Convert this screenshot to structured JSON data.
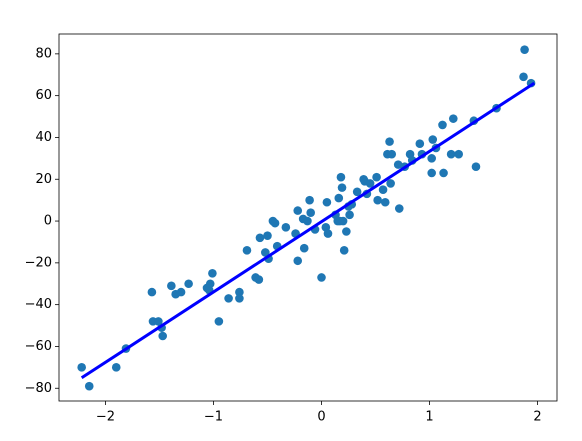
{
  "chart_data": {
    "type": "scatter",
    "xlim": [
      -2.43,
      2.18
    ],
    "ylim": [
      -86.1,
      89.5
    ],
    "xticks": [
      {
        "value": -2,
        "label": "−2"
      },
      {
        "value": -1,
        "label": "−1"
      },
      0,
      1,
      2
    ],
    "yticks": [
      {
        "value": -80,
        "label": "−80"
      },
      {
        "value": -60,
        "label": "−60"
      },
      {
        "value": -40,
        "label": "−40"
      },
      {
        "value": -20,
        "label": "−20"
      },
      0,
      20,
      40,
      60,
      80
    ],
    "series": [
      {
        "type": "scatter",
        "color": "#1f77b4",
        "x": [
          -2.22,
          -2.15,
          -1.9,
          -1.81,
          -1.57,
          -1.56,
          -1.51,
          -1.48,
          -1.47,
          -1.39,
          -1.35,
          -1.3,
          -1.23,
          -1.06,
          -1.04,
          -1.03,
          -1.01,
          -0.95,
          -0.86,
          -0.76,
          -0.76,
          -0.69,
          -0.61,
          -0.58,
          -0.57,
          -0.5,
          -0.52,
          -0.49,
          -0.45,
          -0.43,
          -0.41,
          -0.33,
          -0.24,
          -0.22,
          -0.22,
          -0.17,
          -0.16,
          -0.13,
          -0.11,
          -0.1,
          -0.06,
          0,
          0.04,
          0.05,
          0.06,
          0.13,
          0.15,
          0.16,
          0.17,
          0.18,
          0.19,
          0.2,
          0.21,
          0.23,
          0.25,
          0.26,
          0.28,
          0.33,
          0.39,
          0.4,
          0.42,
          0.45,
          0.51,
          0.52,
          0.57,
          0.59,
          0.61,
          0.63,
          0.64,
          0.65,
          0.71,
          0.72,
          0.77,
          0.82,
          0.84,
          0.91,
          0.93,
          1.02,
          1.02,
          1.03,
          1.06,
          1.12,
          1.13,
          1.2,
          1.22,
          1.27,
          1.41,
          1.43,
          1.62,
          1.87,
          1.88,
          1.94
        ],
        "values": [
          -70,
          -79,
          -70,
          -61,
          -34,
          -48,
          -48,
          -51,
          -55,
          -31,
          -35,
          -34,
          -30,
          -32,
          -33,
          -30,
          -25,
          -48,
          -37,
          -34,
          -37,
          -14,
          -27,
          -28,
          -8,
          -7,
          -15,
          -18,
          0,
          -1,
          -12,
          -3,
          -6,
          5,
          -19,
          1,
          -13,
          0,
          10,
          4,
          -4,
          -27,
          -3,
          9,
          -6,
          3,
          0,
          11,
          0,
          21,
          16,
          0,
          -14,
          -5,
          7,
          3,
          8,
          14,
          20,
          19,
          13,
          18,
          21,
          10,
          15,
          9,
          32,
          38,
          18,
          32,
          27,
          6,
          26,
          32,
          29,
          37,
          32,
          30,
          23,
          39,
          35,
          46,
          23,
          32,
          49,
          32,
          48,
          26,
          54,
          69,
          82,
          66
        ]
      },
      {
        "type": "line",
        "color": "#0000ff",
        "x": [
          -2.22,
          1.97
        ],
        "values": [
          -75,
          66
        ]
      }
    ]
  }
}
